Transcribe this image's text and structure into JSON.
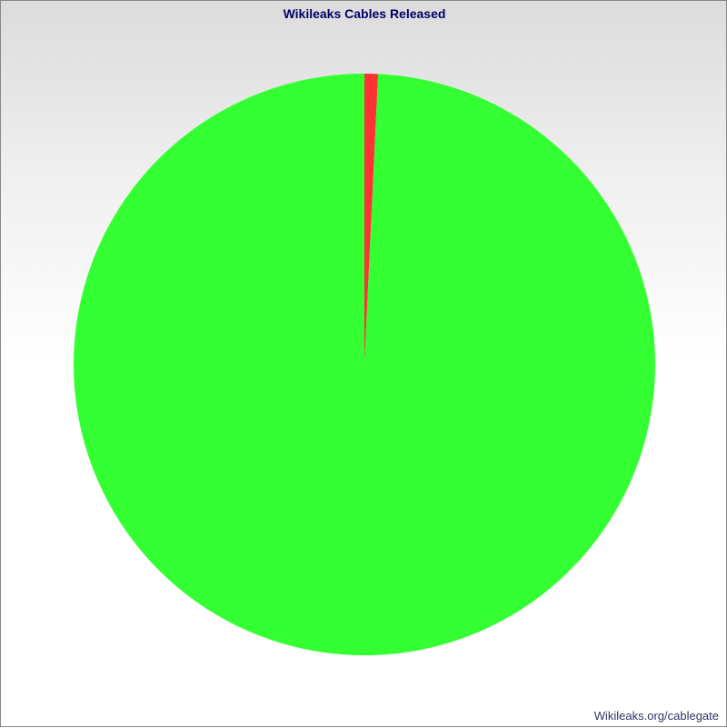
{
  "chart_data": {
    "type": "pie",
    "title": "Wikileaks Cables Released",
    "footer": "Wikileaks.org/cablegate",
    "slices": [
      {
        "value": 0.75,
        "color": "#ff3333"
      },
      {
        "value": 99.25,
        "color": "#33ff33"
      }
    ],
    "start_angle_deg": 0,
    "direction": "clockwise",
    "legend": "none"
  }
}
